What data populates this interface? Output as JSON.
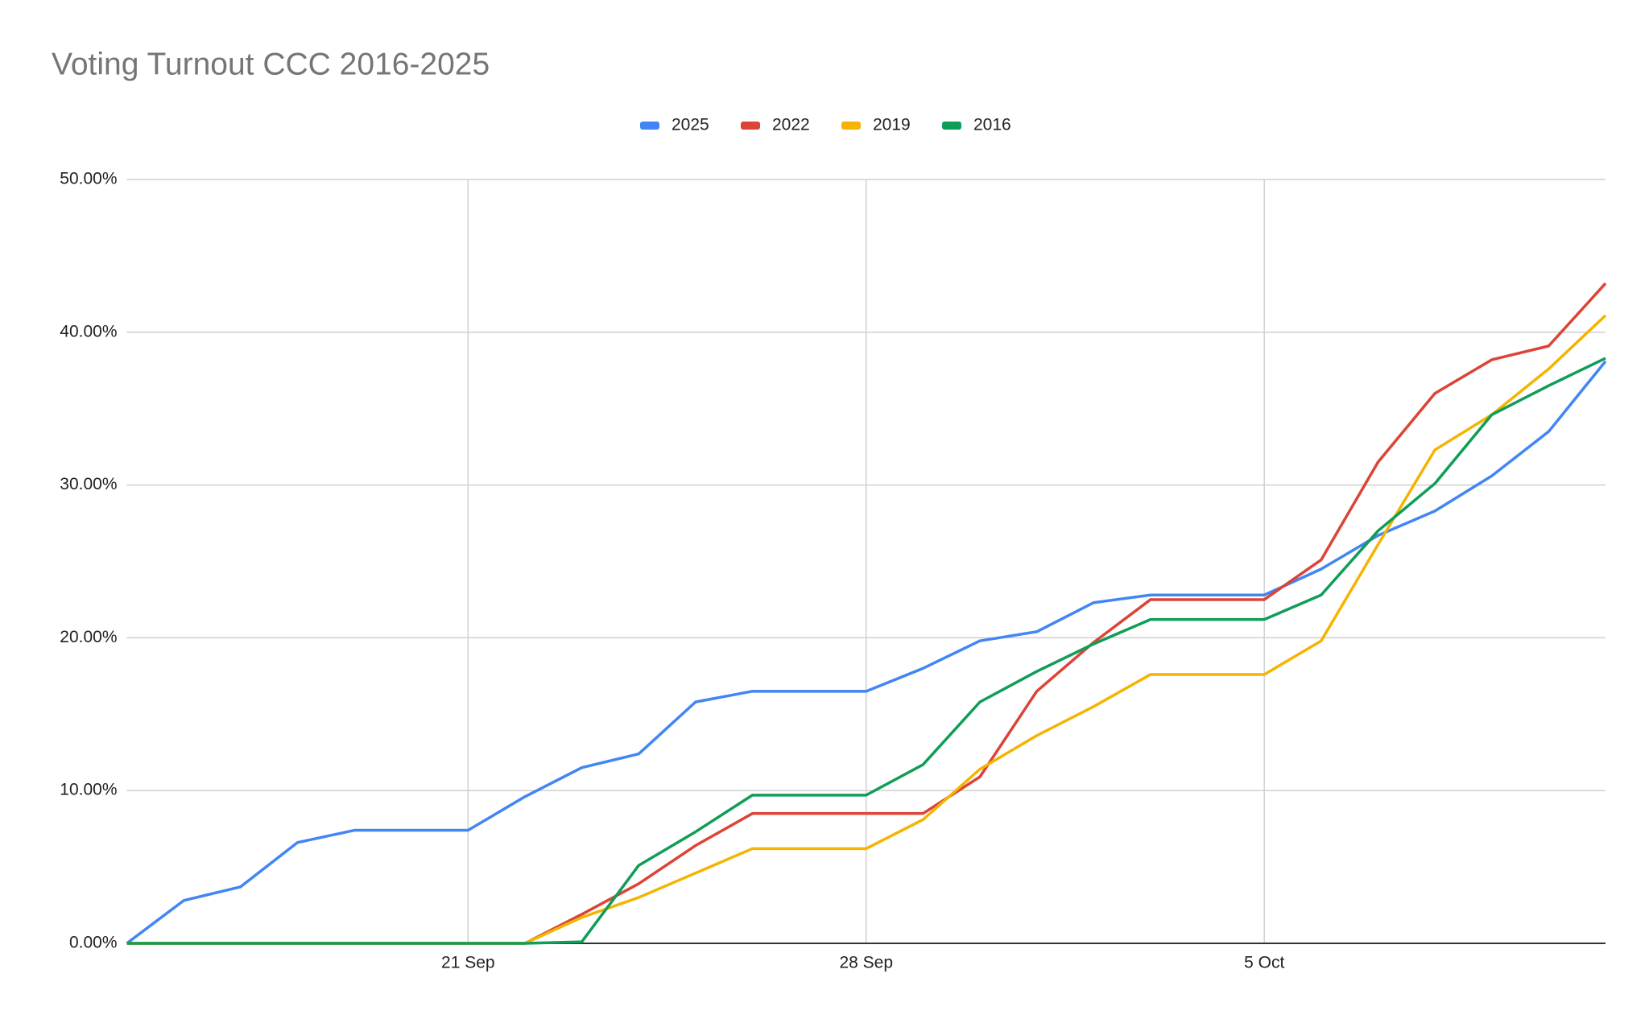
{
  "chart_data": {
    "type": "line",
    "title": "Voting Turnout CCC 2016-2025",
    "categories": [
      null,
      null,
      null,
      null,
      null,
      null,
      "21 Sep",
      null,
      null,
      null,
      null,
      null,
      null,
      "28 Sep",
      null,
      null,
      null,
      null,
      null,
      null,
      "5 Oct",
      null,
      null,
      null,
      null,
      null,
      null
    ],
    "series": [
      {
        "name": "2025",
        "color": "#4285f4",
        "values": [
          0,
          2.8,
          3.7,
          6.6,
          7.4,
          7.4,
          7.4,
          9.6,
          11.5,
          12.4,
          15.8,
          16.5,
          16.5,
          16.5,
          18.0,
          19.8,
          20.4,
          22.3,
          22.8,
          22.8,
          22.8,
          24.5,
          26.7,
          28.3,
          30.6,
          33.5,
          38.1
        ]
      },
      {
        "name": "2022",
        "color": "#db4437",
        "values": [
          0,
          0,
          0,
          0,
          0,
          0,
          0,
          0,
          1.9,
          3.9,
          6.4,
          8.5,
          8.5,
          8.5,
          8.5,
          10.9,
          16.5,
          19.7,
          22.5,
          22.5,
          22.5,
          25.1,
          31.5,
          36.0,
          38.2,
          39.1,
          43.2
        ]
      },
      {
        "name": "2019",
        "color": "#f4b400",
        "values": [
          0,
          0,
          0,
          0,
          0,
          0,
          0,
          0,
          1.7,
          3.0,
          4.6,
          6.2,
          6.2,
          6.2,
          8.1,
          11.4,
          13.6,
          15.5,
          17.6,
          17.6,
          17.6,
          19.8,
          26.1,
          32.3,
          34.6,
          37.6,
          41.1
        ]
      },
      {
        "name": "2016",
        "color": "#0f9d58",
        "values": [
          0,
          0,
          0,
          0,
          0,
          0,
          0,
          0,
          0.1,
          5.1,
          7.3,
          9.7,
          9.7,
          9.7,
          11.7,
          15.8,
          17.8,
          19.6,
          21.2,
          21.2,
          21.2,
          22.8,
          27.0,
          30.1,
          34.6,
          36.5,
          38.3
        ]
      }
    ],
    "ylim": [
      0,
      50
    ],
    "yticks": [
      {
        "value": 0,
        "label": "0.00%"
      },
      {
        "value": 10,
        "label": "10.00%"
      },
      {
        "value": 20,
        "label": "20.00%"
      },
      {
        "value": 30,
        "label": "30.00%"
      },
      {
        "value": 40,
        "label": "40.00%"
      },
      {
        "value": 50,
        "label": "50.00%"
      }
    ],
    "grid": true,
    "legend": "top"
  }
}
